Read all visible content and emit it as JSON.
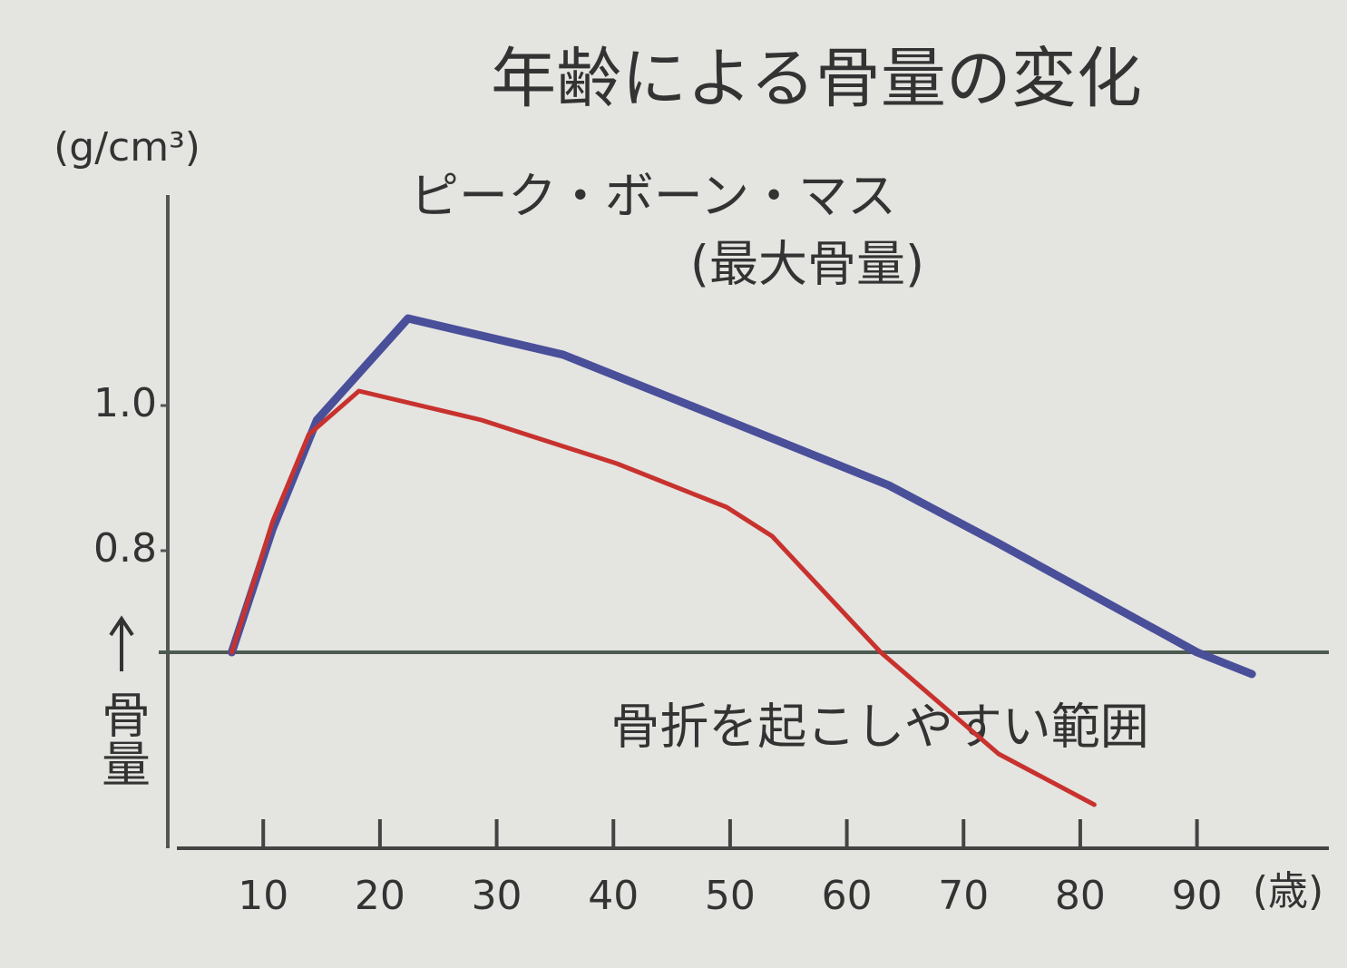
{
  "chart_data": {
    "type": "line",
    "title": "年齢による骨量の変化",
    "y_unit": "(g/cm³)",
    "y_label": "骨量",
    "x_label": "(歳)",
    "annotations": [
      "ピーク・ボーン・マス",
      "(最大骨量)",
      "骨折を起こしやすい範囲"
    ],
    "threshold": 0.66,
    "xlim": [
      2.6,
      101.3
    ],
    "ylim": [
      0.39,
      1.29
    ],
    "xticks": [
      10,
      20,
      30,
      40,
      50,
      60,
      70,
      80,
      90
    ],
    "yticks": [
      0.8,
      {
        "value": 1,
        "label": "1.0"
      }
    ],
    "series": [
      {
        "color": "#4a4f9a",
        "x": [
          7.3,
          10.8,
          14.6,
          22.4,
          35.7,
          49.7,
          63.6,
          73,
          90,
          94.7
        ],
        "values": [
          0.66,
          0.83,
          0.98,
          1.12,
          1.07,
          0.98,
          0.89,
          0.81,
          0.66,
          0.63
        ]
      },
      {
        "color": "#c8322e",
        "x": [
          7.3,
          10.8,
          13.9,
          18.2,
          28.7,
          40.3,
          49.7,
          53.6,
          62.9,
          73,
          81.2
        ],
        "values": [
          0.66,
          0.84,
          0.96,
          1.02,
          0.98,
          0.92,
          0.86,
          0.82,
          0.66,
          0.52,
          0.45
        ]
      }
    ]
  }
}
